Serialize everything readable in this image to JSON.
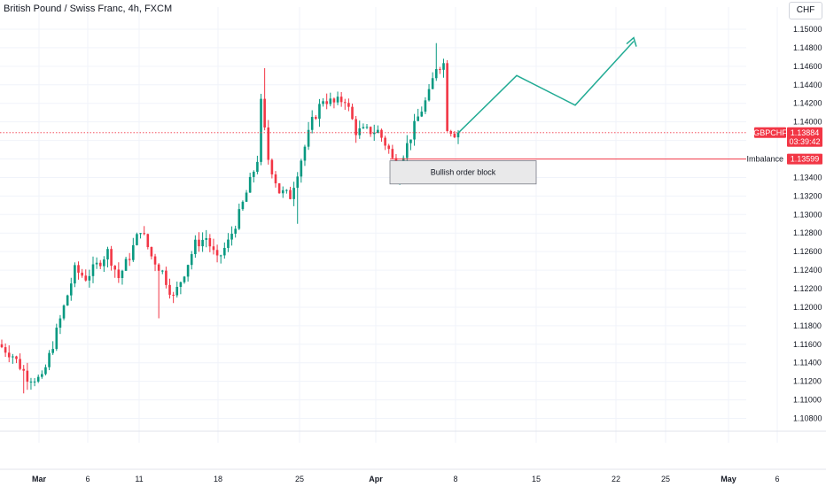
{
  "header": {
    "title": "British Pound / Swiss Franc, 4h, FXCM",
    "currency": "CHF"
  },
  "colors": {
    "up": "#089981",
    "down": "#f23645",
    "price_line": "#f23645",
    "arrow": "#22ab94",
    "grid": "#f0f3fa",
    "order_block_fill": "#e9e9ea",
    "order_block_border": "#787b86"
  },
  "chart_data": {
    "type": "candlestick",
    "symbol": "GBPCHF",
    "timeframe": "4h",
    "ylim": [
      1.107,
      1.151
    ],
    "grid": true,
    "y_ticks": [
      "1.15000",
      "1.14800",
      "1.14600",
      "1.14400",
      "1.14200",
      "1.14000",
      "1.13800",
      "1.13600",
      "1.13400",
      "1.13200",
      "1.13000",
      "1.12800",
      "1.12600",
      "1.12400",
      "1.12200",
      "1.12000",
      "1.11800",
      "1.11600",
      "1.11400",
      "1.11200",
      "1.11000",
      "1.10800"
    ],
    "x_ticks": [
      "Mar",
      "6",
      "11",
      "18",
      "25",
      "Apr",
      "8",
      "15",
      "22",
      "25",
      "May",
      "6"
    ],
    "current_price": {
      "label": "GBPCHF",
      "value": "1.13884",
      "countdown": "03:39:42"
    },
    "imbalance": {
      "label": "Imbalance",
      "value": "1.13599"
    },
    "order_block": {
      "label": "Bullish order block",
      "top": 1.1358,
      "bottom": 1.1333
    },
    "projection": [
      [
        1.1388,
        0
      ],
      [
        1.145,
        4
      ],
      [
        1.1418,
        8
      ],
      [
        1.1487,
        12
      ]
    ],
    "path_keypoints": [
      [
        0,
        1.116
      ],
      [
        4,
        1.1148
      ],
      [
        8,
        1.1125
      ],
      [
        12,
        1.1122
      ],
      [
        15,
        1.116
      ],
      [
        18,
        1.12
      ],
      [
        21,
        1.124
      ],
      [
        24,
        1.1232
      ],
      [
        27,
        1.1245
      ],
      [
        30,
        1.126
      ],
      [
        33,
        1.1232
      ],
      [
        36,
        1.1255
      ],
      [
        39,
        1.1285
      ],
      [
        42,
        1.1255
      ],
      [
        45,
        1.1238
      ],
      [
        48,
        1.121
      ],
      [
        51,
        1.1238
      ],
      [
        54,
        1.1268
      ],
      [
        57,
        1.1275
      ],
      [
        60,
        1.125
      ],
      [
        63,
        1.127
      ],
      [
        66,
        1.13
      ],
      [
        69,
        1.1335
      ],
      [
        71,
        1.136
      ],
      [
        72,
        1.142
      ],
      [
        74,
        1.136
      ],
      [
        77,
        1.1325
      ],
      [
        80,
        1.132
      ],
      [
        83,
        1.136
      ],
      [
        86,
        1.14
      ],
      [
        89,
        1.1425
      ],
      [
        92,
        1.142
      ],
      [
        95,
        1.1425
      ],
      [
        98,
        1.139
      ],
      [
        101,
        1.139
      ],
      [
        104,
        1.139
      ],
      [
        107,
        1.137
      ],
      [
        109,
        1.1348
      ],
      [
        112,
        1.1375
      ],
      [
        115,
        1.1405
      ],
      [
        118,
        1.143
      ],
      [
        120,
        1.146
      ],
      [
        122,
        1.1463
      ],
      [
        123,
        1.1395
      ],
      [
        125,
        1.1388
      ]
    ]
  }
}
